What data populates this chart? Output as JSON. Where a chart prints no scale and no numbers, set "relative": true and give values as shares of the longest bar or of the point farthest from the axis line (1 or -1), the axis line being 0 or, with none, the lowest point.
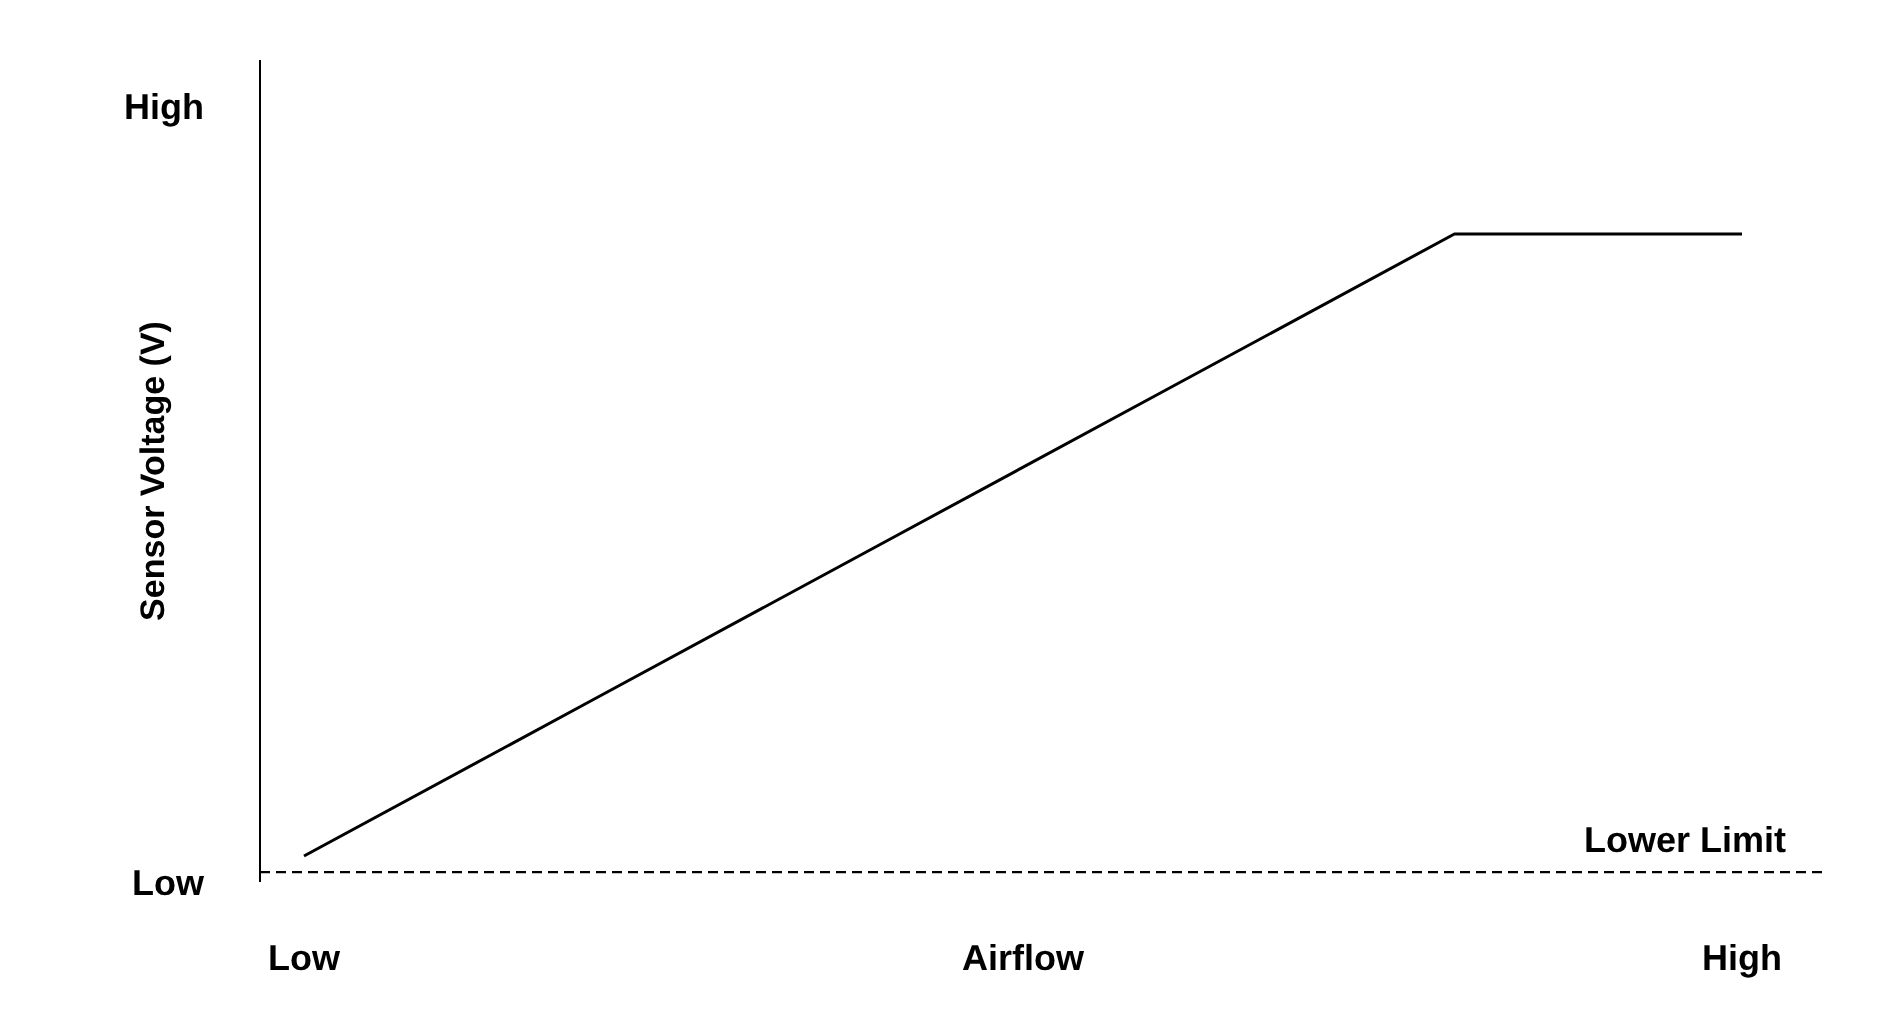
{
  "chart_data": {
    "type": "line",
    "relative": true,
    "xlabel": "Airflow",
    "ylabel": "Sensor Voltage (V)",
    "categories": [
      "Low",
      null,
      null,
      null,
      null,
      "High"
    ],
    "series": [
      {
        "color": "#000000",
        "values": [
          0,
          0.25,
          0.5,
          0.75,
          1,
          1
        ]
      }
    ],
    "annotations": [
      "High",
      "Low"
    ],
    "ref_lines": [
      {
        "axis": "y",
        "value": -0.026,
        "label": "Lower Limit",
        "color": "#000000",
        "line_style": "dashed"
      }
    ],
    "marker": "none",
    "line_style": "solid"
  }
}
